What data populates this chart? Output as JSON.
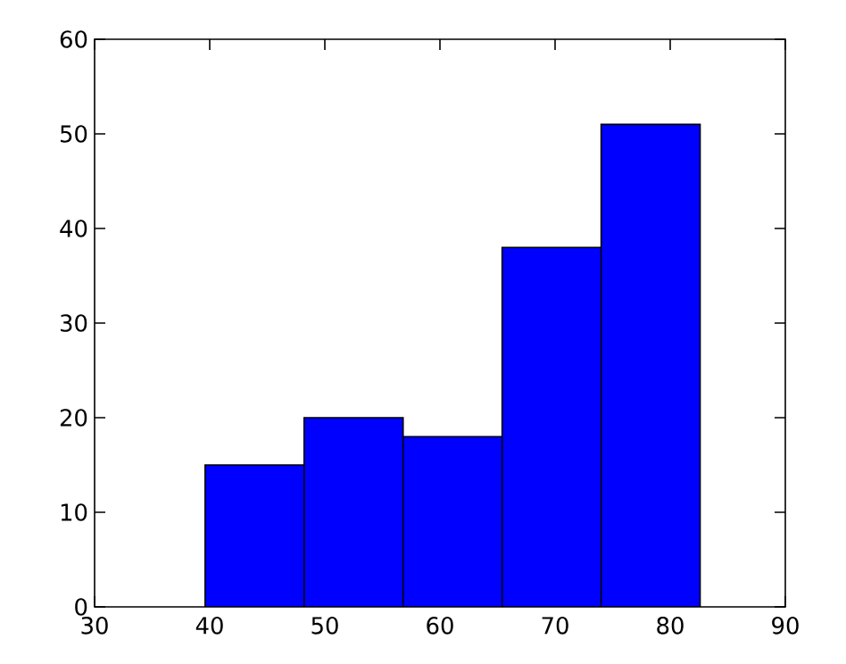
{
  "chart_data": {
    "type": "histogram",
    "bins": [
      39.6,
      48.2,
      56.8,
      65.4,
      74.0,
      82.6
    ],
    "values": [
      15,
      20,
      18,
      38,
      51
    ],
    "color": "#0000ff",
    "xlim": [
      30,
      90
    ],
    "ylim": [
      0,
      60
    ],
    "xticks": [
      30,
      40,
      50,
      60,
      70,
      80,
      90
    ],
    "yticks": [
      0,
      10,
      20,
      30,
      40,
      50,
      60
    ],
    "grid": false
  }
}
